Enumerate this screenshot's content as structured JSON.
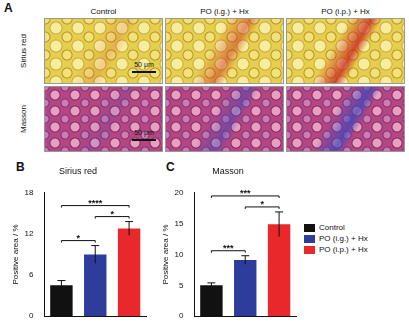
{
  "panel_a": {
    "label": "A",
    "columns": [
      "Control",
      "PO (i.g.) + Hx",
      "PO (i.p.) + Hx"
    ],
    "rows": [
      {
        "name": "Sirius red",
        "scale_bar": "50 μm"
      },
      {
        "name": "Masson",
        "scale_bar": "50 μm"
      }
    ]
  },
  "chart_data": [
    {
      "panel_label": "B",
      "type": "bar",
      "title": "Sirius red",
      "y_label": "Positive area / %",
      "categories": [
        "Control",
        "PO (i.g.) + Hx",
        "PO (i.p.) + Hx"
      ],
      "values": [
        4.5,
        9.0,
        12.8
      ],
      "errors": [
        0.7,
        1.3,
        1.0
      ],
      "colors": [
        "#111111",
        "#2e3d9c",
        "#e8282b"
      ],
      "ylim": [
        0,
        18
      ],
      "yticks": [
        0,
        6,
        12,
        18
      ],
      "grid": false,
      "tick_labels": "y",
      "annotations": [
        {
          "between": [
            "Control",
            "PO (i.p.) + Hx"
          ],
          "label": "****"
        },
        {
          "between": [
            "Control",
            "PO (i.g.) + Hx"
          ],
          "label": "*"
        },
        {
          "between": [
            "PO (i.g.) + Hx",
            "PO (i.p.) + Hx"
          ],
          "label": "*"
        }
      ]
    },
    {
      "panel_label": "C",
      "type": "bar",
      "title": "Masson",
      "y_label": "Positive area / %",
      "categories": [
        "Control",
        "PO (i.g.) + Hx",
        "PO (i.p.) + Hx"
      ],
      "values": [
        5.0,
        9.1,
        14.9
      ],
      "errors": [
        0.4,
        0.7,
        2.0
      ],
      "colors": [
        "#111111",
        "#2e3d9c",
        "#e8282b"
      ],
      "ylim": [
        0,
        20
      ],
      "yticks": [
        0,
        5,
        10,
        15,
        20
      ],
      "grid": false,
      "tick_labels": "y",
      "legend": "right",
      "annotations": [
        {
          "between": [
            "Control",
            "PO (i.p.) + Hx"
          ],
          "label": "***"
        },
        {
          "between": [
            "Control",
            "PO (i.g.) + Hx"
          ],
          "label": "***"
        },
        {
          "between": [
            "PO (i.g.) + Hx",
            "PO (i.p.) + Hx"
          ],
          "label": "*"
        }
      ]
    }
  ]
}
